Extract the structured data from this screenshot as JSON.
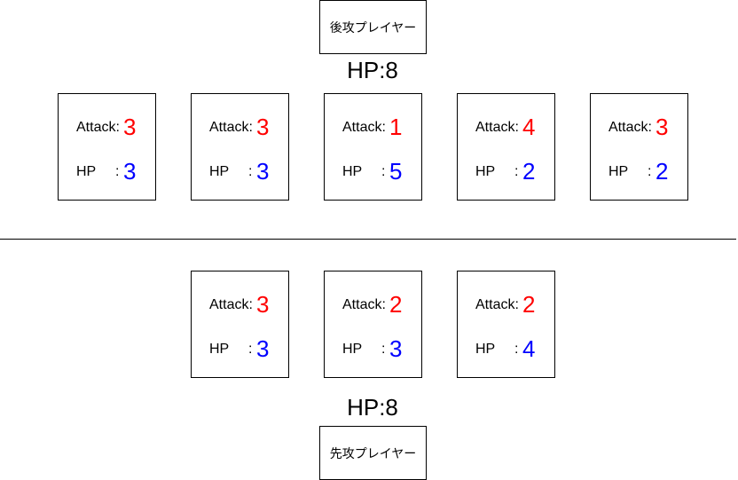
{
  "colors": {
    "attack": "#ff0000",
    "hp": "#0000ff",
    "border": "#000000"
  },
  "labels": {
    "attack": "Attack:",
    "hp": "HP",
    "hp_separator": ":"
  },
  "top_player": {
    "name": "後攻プレイヤー",
    "hp": "HP:8"
  },
  "bottom_player": {
    "name": "先攻プレイヤー",
    "hp": "HP:8"
  },
  "top_cards": [
    {
      "attack": "3",
      "hp": "3"
    },
    {
      "attack": "3",
      "hp": "3"
    },
    {
      "attack": "1",
      "hp": "5"
    },
    {
      "attack": "4",
      "hp": "2"
    },
    {
      "attack": "3",
      "hp": "2"
    }
  ],
  "bottom_cards": [
    {
      "attack": "3",
      "hp": "3"
    },
    {
      "attack": "2",
      "hp": "3"
    },
    {
      "attack": "2",
      "hp": "4"
    }
  ]
}
